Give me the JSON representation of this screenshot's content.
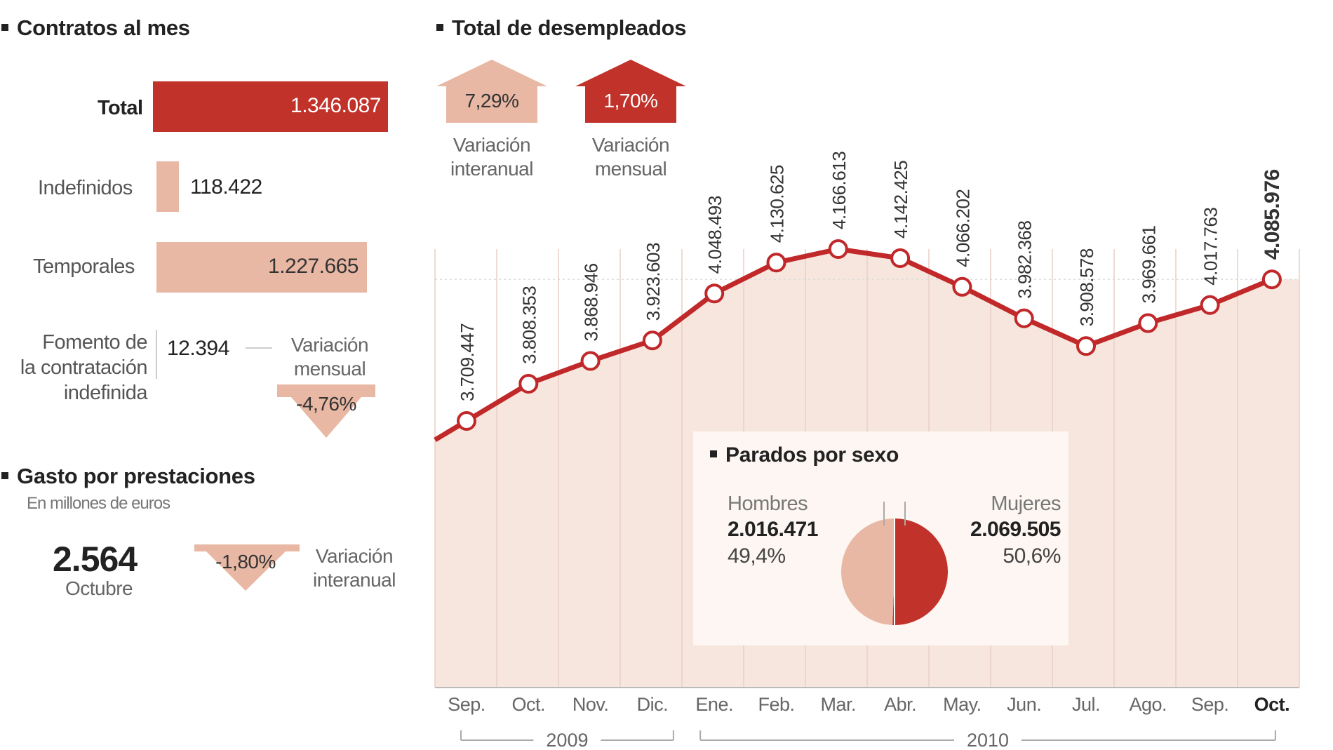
{
  "colors": {
    "dark_red": "#c0322a",
    "light_red": "#e8b8a4",
    "area_fill": "#f7e6dd",
    "line": "#c0282a"
  },
  "contratos": {
    "title": "Contratos al mes",
    "rows": [
      {
        "label": "Total",
        "value": "1.346.087",
        "amount": 1346087
      },
      {
        "label": "Indefinidos",
        "value": "118.422",
        "amount": 118422
      },
      {
        "label": "Temporales",
        "value": "1.227.665",
        "amount": 1227665
      }
    ],
    "fomento": {
      "label_lines": [
        "Fomento de",
        "la contratación",
        "indefinida"
      ],
      "value": "12.394",
      "variation_caption_lines": [
        "Variación",
        "mensual"
      ],
      "variation": "-4,76%",
      "direction": "down"
    }
  },
  "gasto": {
    "title": "Gasto por prestaciones",
    "subtitle": "En millones de euros",
    "value": "2.564",
    "period": "Octubre",
    "variation": "-1,80%",
    "direction": "down",
    "variation_caption_lines": [
      "Variación",
      "interanual"
    ]
  },
  "desempleados": {
    "title": "Total de desempleados",
    "variations": [
      {
        "value": "7,29%",
        "direction": "up",
        "caption_lines": [
          "Variación",
          "interanual"
        ]
      },
      {
        "value": "1,70%",
        "direction": "up",
        "caption_lines": [
          "Variación",
          "mensual"
        ]
      }
    ]
  },
  "chart_data": {
    "type": "area",
    "title": "Total de desempleados",
    "categories": [
      "Sep.",
      "Oct.",
      "Nov.",
      "Dic.",
      "Ene.",
      "Feb.",
      "Mar.",
      "Abr.",
      "May.",
      "Jun.",
      "Jul.",
      "Ago.",
      "Sep.",
      "Oct."
    ],
    "series": [
      {
        "values": [
          3709447,
          3808353,
          3868946,
          3923603,
          4048493,
          4130625,
          4166613,
          4142425,
          4066202,
          3982368,
          3908578,
          3969661,
          4017763,
          4085976
        ],
        "labels": [
          "3.709.447",
          "3.808.353",
          "3.868.946",
          "3.923.603",
          "4.048.493",
          "4.130.625",
          "4.166.613",
          "4.142.425",
          "4.066.202",
          "3.982.368",
          "3.908.578",
          "3.969.661",
          "4.017.763",
          "4.085.976"
        ]
      }
    ],
    "years": [
      {
        "label": "2009",
        "from_index": 0,
        "to_index": 3
      },
      {
        "label": "2010",
        "from_index": 4,
        "to_index": 13
      }
    ],
    "highlight_last": true,
    "grid": "vertical"
  },
  "parados_sexo": {
    "title": "Parados por sexo",
    "type": "pie",
    "slices": [
      {
        "label": "Hombres",
        "value_text": "2.016.471",
        "pct_text": "49,4%",
        "pct": 49.4
      },
      {
        "label": "Mujeres",
        "value_text": "2.069.505",
        "pct_text": "50,6%",
        "pct": 50.6
      }
    ]
  }
}
